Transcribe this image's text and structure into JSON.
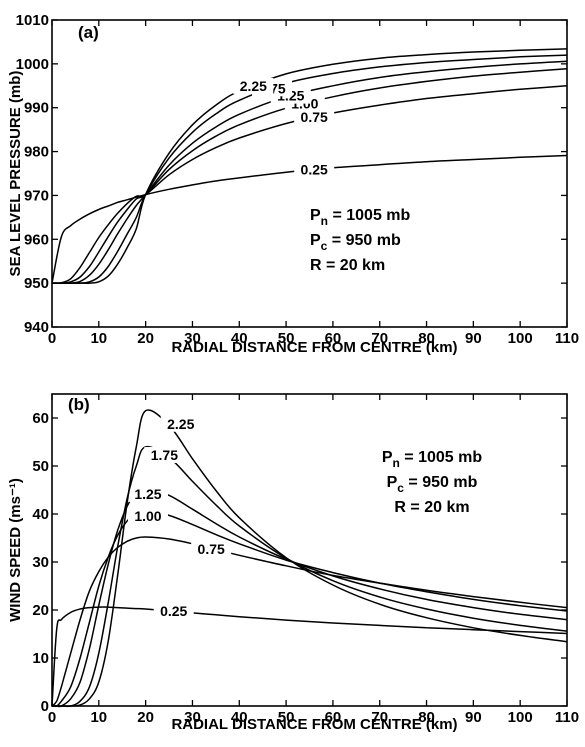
{
  "chart_data": [
    {
      "type": "line",
      "panel_label": "(a)",
      "xlabel": "RADIAL DISTANCE FROM CENTRE (km)",
      "ylabel": "SEA LEVEL PRESSURE (mb)",
      "xlim": [
        0,
        110
      ],
      "ylim": [
        940,
        1010
      ],
      "x_ticks": [
        "0",
        "10",
        "20",
        "30",
        "40",
        "50",
        "60",
        "70",
        "80",
        "90",
        "100",
        "110"
      ],
      "y_ticks": [
        "940",
        "950",
        "960",
        "970",
        "980",
        "990",
        "1000",
        "1010"
      ],
      "annotations": [
        {
          "main": "P",
          "sub": "n",
          "rest": " = 1005 mb"
        },
        {
          "main": "P",
          "sub": "c",
          "rest": " = 950 mb"
        },
        {
          "main": "R",
          "sub": "",
          "rest": " = 20 km"
        }
      ],
      "x": [
        0,
        2,
        4,
        6,
        8,
        10,
        12,
        14,
        16,
        18,
        20,
        25,
        30,
        35,
        40,
        50,
        60,
        70,
        80,
        90,
        100,
        110
      ],
      "series": [
        {
          "label": "0.25",
          "values": [
            950,
            960.6,
            963.1,
            964.6,
            965.8,
            966.8,
            967.6,
            968.4,
            969.0,
            969.6,
            970.2,
            971.4,
            972.4,
            973.3,
            974.0,
            975.3,
            976.3,
            977.0,
            977.7,
            978.2,
            978.7,
            979.1
          ]
        },
        {
          "label": "0.75",
          "values": [
            950,
            950.1,
            951.0,
            953.6,
            957.0,
            960.4,
            963.3,
            965.9,
            968.1,
            969.8,
            970.2,
            974.7,
            978.2,
            980.9,
            983.1,
            986.4,
            988.8,
            990.6,
            992.1,
            993.2,
            994.2,
            995.0
          ]
        },
        {
          "label": "1.00",
          "values": [
            950,
            950.0,
            950.3,
            951.4,
            953.8,
            957.1,
            960.6,
            963.9,
            966.7,
            969.2,
            970.2,
            975.9,
            980.2,
            983.5,
            986.1,
            989.9,
            992.5,
            994.5,
            996.0,
            997.2,
            998.1,
            998.9
          ]
        },
        {
          "label": "1.25",
          "values": [
            950,
            950.0,
            950.0,
            950.4,
            951.8,
            954.3,
            957.6,
            961.2,
            964.6,
            967.7,
            970.2,
            976.9,
            981.9,
            985.6,
            988.5,
            992.5,
            995.0,
            996.9,
            998.2,
            999.2,
            1000.0,
            1000.6
          ]
        },
        {
          "label": "1.75",
          "values": [
            950,
            950.0,
            950.0,
            950.0,
            950.3,
            951.4,
            953.8,
            957.2,
            961.1,
            965.0,
            970.2,
            978.5,
            984.4,
            988.6,
            991.7,
            995.6,
            997.8,
            999.3,
            1000.3,
            1001.0,
            1001.6,
            1002.0
          ]
        },
        {
          "label": "2.25",
          "values": [
            950,
            950.0,
            950.0,
            950.0,
            950.0,
            950.3,
            951.6,
            954.3,
            958.0,
            962.4,
            970.2,
            979.6,
            986.1,
            990.6,
            993.8,
            997.7,
            999.9,
            1001.3,
            1002.1,
            1002.7,
            1003.1,
            1003.4
          ]
        }
      ]
    },
    {
      "type": "line",
      "panel_label": "(b)",
      "xlabel": "RADIAL DISTANCE FROM CENTRE (km)",
      "ylabel": "WIND SPEED (ms⁻¹)",
      "xlim": [
        0,
        110
      ],
      "ylim": [
        0,
        65
      ],
      "x_ticks": [
        "0",
        "10",
        "20",
        "30",
        "40",
        "50",
        "60",
        "70",
        "80",
        "90",
        "100",
        "110"
      ],
      "y_ticks": [
        "0",
        "10",
        "20",
        "30",
        "40",
        "50",
        "60"
      ],
      "annotations": [
        {
          "main": "P",
          "sub": "n",
          "rest": " = 1005 mb"
        },
        {
          "main": "P",
          "sub": "c",
          "rest": " = 950 mb"
        },
        {
          "main": "R",
          "sub": "",
          "rest": " = 20 km"
        }
      ],
      "x": [
        0,
        1,
        2,
        4,
        6,
        8,
        10,
        12,
        14,
        16,
        18,
        20,
        25,
        30,
        35,
        40,
        50,
        60,
        70,
        80,
        90,
        100,
        110
      ],
      "series": [
        {
          "label": "0.25",
          "values": [
            0,
            16,
            18,
            19.5,
            20.2,
            20.5,
            20.6,
            20.6,
            20.5,
            20.4,
            20.3,
            20.2,
            19.8,
            19.4,
            19.0,
            18.6,
            17.9,
            17.3,
            16.8,
            16.3,
            15.9,
            15.5,
            15.1
          ]
        },
        {
          "label": "0.75",
          "values": [
            0,
            1,
            4,
            11,
            18,
            24,
            28,
            31,
            33,
            34.3,
            35,
            35.2,
            34.8,
            33.8,
            32.6,
            31.4,
            29.2,
            27.2,
            25.6,
            24.1,
            22.8,
            21.6,
            20.5
          ]
        },
        {
          "label": "1.00",
          "values": [
            0,
            0,
            1,
            4,
            10,
            17.5,
            25,
            31,
            35.5,
            38.5,
            40,
            40.6,
            39.7,
            37.8,
            35.7,
            33.8,
            30.4,
            27.8,
            25.6,
            23.8,
            22.2,
            20.9,
            19.8
          ]
        },
        {
          "label": "1.25",
          "values": [
            0,
            0,
            0,
            1.5,
            5,
            12,
            21,
            29.5,
            36.5,
            41.5,
            44.5,
            45.4,
            43.9,
            41.0,
            38.0,
            35.2,
            30.6,
            27.1,
            24.4,
            22.2,
            20.5,
            19.1,
            18.0
          ]
        },
        {
          "label": "1.75",
          "values": [
            0,
            0,
            0,
            0,
            1,
            4,
            11,
            21.5,
            33,
            43,
            50,
            54,
            51.8,
            46.8,
            41.9,
            37.5,
            30.8,
            26.1,
            22.7,
            20.2,
            18.3,
            16.8,
            15.6
          ]
        },
        {
          "label": "2.25",
          "values": [
            0,
            0,
            0,
            0,
            0.2,
            1.5,
            5,
            13.5,
            27,
            42,
            54,
            61.5,
            58.5,
            51.5,
            44.9,
            39.2,
            30.9,
            25.2,
            21.2,
            18.4,
            16.3,
            14.7,
            13.4
          ]
        }
      ]
    }
  ]
}
